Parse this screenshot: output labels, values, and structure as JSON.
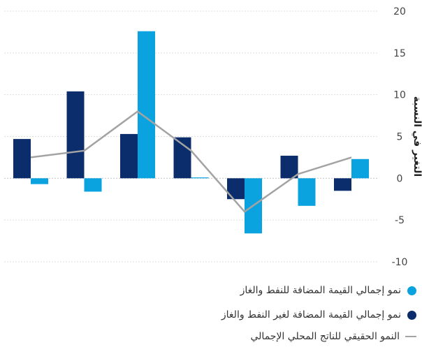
{
  "chart_data": {
    "type": "bar",
    "ylabel": "التغير في النسبة",
    "ylim": [
      -10,
      20
    ],
    "yticks": [
      -10,
      -5,
      0,
      5,
      10,
      15,
      20
    ],
    "yticklabels": [
      "-10",
      "-5",
      "0",
      "5",
      "10",
      "15",
      "20"
    ],
    "grid": true,
    "legend_position": "bottom",
    "categories": [
      "",
      "",
      "",
      "",
      "",
      "",
      ""
    ],
    "series": [
      {
        "name": "نمو إجمالي القيمة المضافة لغير النفط والغاز",
        "kind": "bar",
        "color": "#0b2d6b",
        "values": [
          4.7,
          10.4,
          5.3,
          4.9,
          -2.5,
          2.7,
          -1.5
        ]
      },
      {
        "name": "نمو إجمالي القيمة المضافة للنفط والغاز",
        "kind": "bar",
        "color": "#0aa3e0",
        "values": [
          -0.7,
          -1.6,
          17.6,
          0.1,
          -6.6,
          -3.3,
          2.3
        ]
      },
      {
        "name": "النمو الحقيقي للناتج المحلي الإجمالي",
        "kind": "line",
        "color": "#a3a3a3",
        "values": [
          2.5,
          3.3,
          8.0,
          3.3,
          -4.0,
          0.5,
          2.5
        ]
      }
    ]
  }
}
